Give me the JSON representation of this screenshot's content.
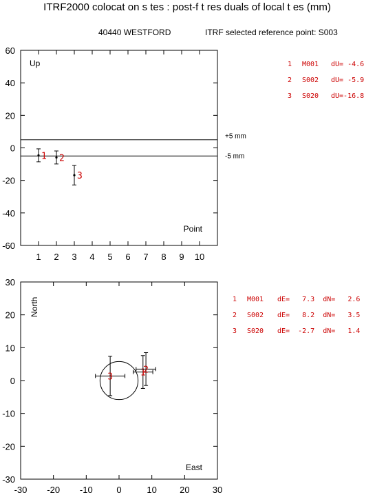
{
  "title": "ITRF2000 colocat on s tes : post-f t res duals of local t es (mm)",
  "site_label": "40440 WESTFORD",
  "ref_label": "ITRF selected reference point: S003",
  "colors": {
    "axes": "#000000",
    "label": "#cc0000",
    "text": "#000000"
  },
  "chart_data": [
    {
      "type": "scatter",
      "panel": "up",
      "corner_label": "Up",
      "xlabel": "Point",
      "xlim": [
        0,
        11
      ],
      "ylim": [
        -60,
        60
      ],
      "x_ticks": [
        1,
        2,
        3,
        4,
        5,
        6,
        7,
        8,
        9,
        10
      ],
      "y_ticks": [
        -60,
        -40,
        -20,
        0,
        20,
        40,
        60
      ],
      "threshold_lines": [
        {
          "y": 5,
          "label": "+5 mm"
        },
        {
          "y": -5,
          "label": "-5 mm"
        }
      ],
      "points": [
        {
          "label": "1",
          "x": 1,
          "y": -4.6,
          "err": 4
        },
        {
          "label": "2",
          "x": 2,
          "y": -5.9,
          "err": 4
        },
        {
          "label": "3",
          "x": 3,
          "y": -16.8,
          "err": 6
        }
      ],
      "legend_rows": [
        {
          "num": "1",
          "name": "M001",
          "text": "dU= -4.6"
        },
        {
          "num": "2",
          "name": "S002",
          "text": "dU= -5.9"
        },
        {
          "num": "3",
          "name": "S020",
          "text": "dU=-16.8"
        }
      ]
    },
    {
      "type": "scatter",
      "panel": "horizontal",
      "xlabel": "East",
      "ylabel": "North",
      "xlim": [
        -30,
        30
      ],
      "ylim": [
        -30,
        30
      ],
      "x_ticks": [
        -30,
        -20,
        -10,
        0,
        10,
        20,
        30
      ],
      "y_ticks": [
        -30,
        -20,
        -10,
        0,
        10,
        20,
        30
      ],
      "circle": {
        "cx": 0,
        "cy": 0,
        "r": 5.8
      },
      "points": [
        {
          "label": "1",
          "x": 7.3,
          "y": 2.6,
          "ex": 3,
          "ey": 5
        },
        {
          "label": "2",
          "x": 8.2,
          "y": 3.5,
          "ex": 3,
          "ey": 5
        },
        {
          "label": "3",
          "x": -2.7,
          "y": 1.4,
          "ex": 4.5,
          "ey": 6
        }
      ],
      "legend_rows": [
        {
          "num": "1",
          "name": "M001",
          "text": "dE=   7.3  dN=   2.6"
        },
        {
          "num": "2",
          "name": "S002",
          "text": "dE=   8.2  dN=   3.5"
        },
        {
          "num": "3",
          "name": "S020",
          "text": "dE=  -2.7  dN=   1.4"
        }
      ]
    }
  ]
}
